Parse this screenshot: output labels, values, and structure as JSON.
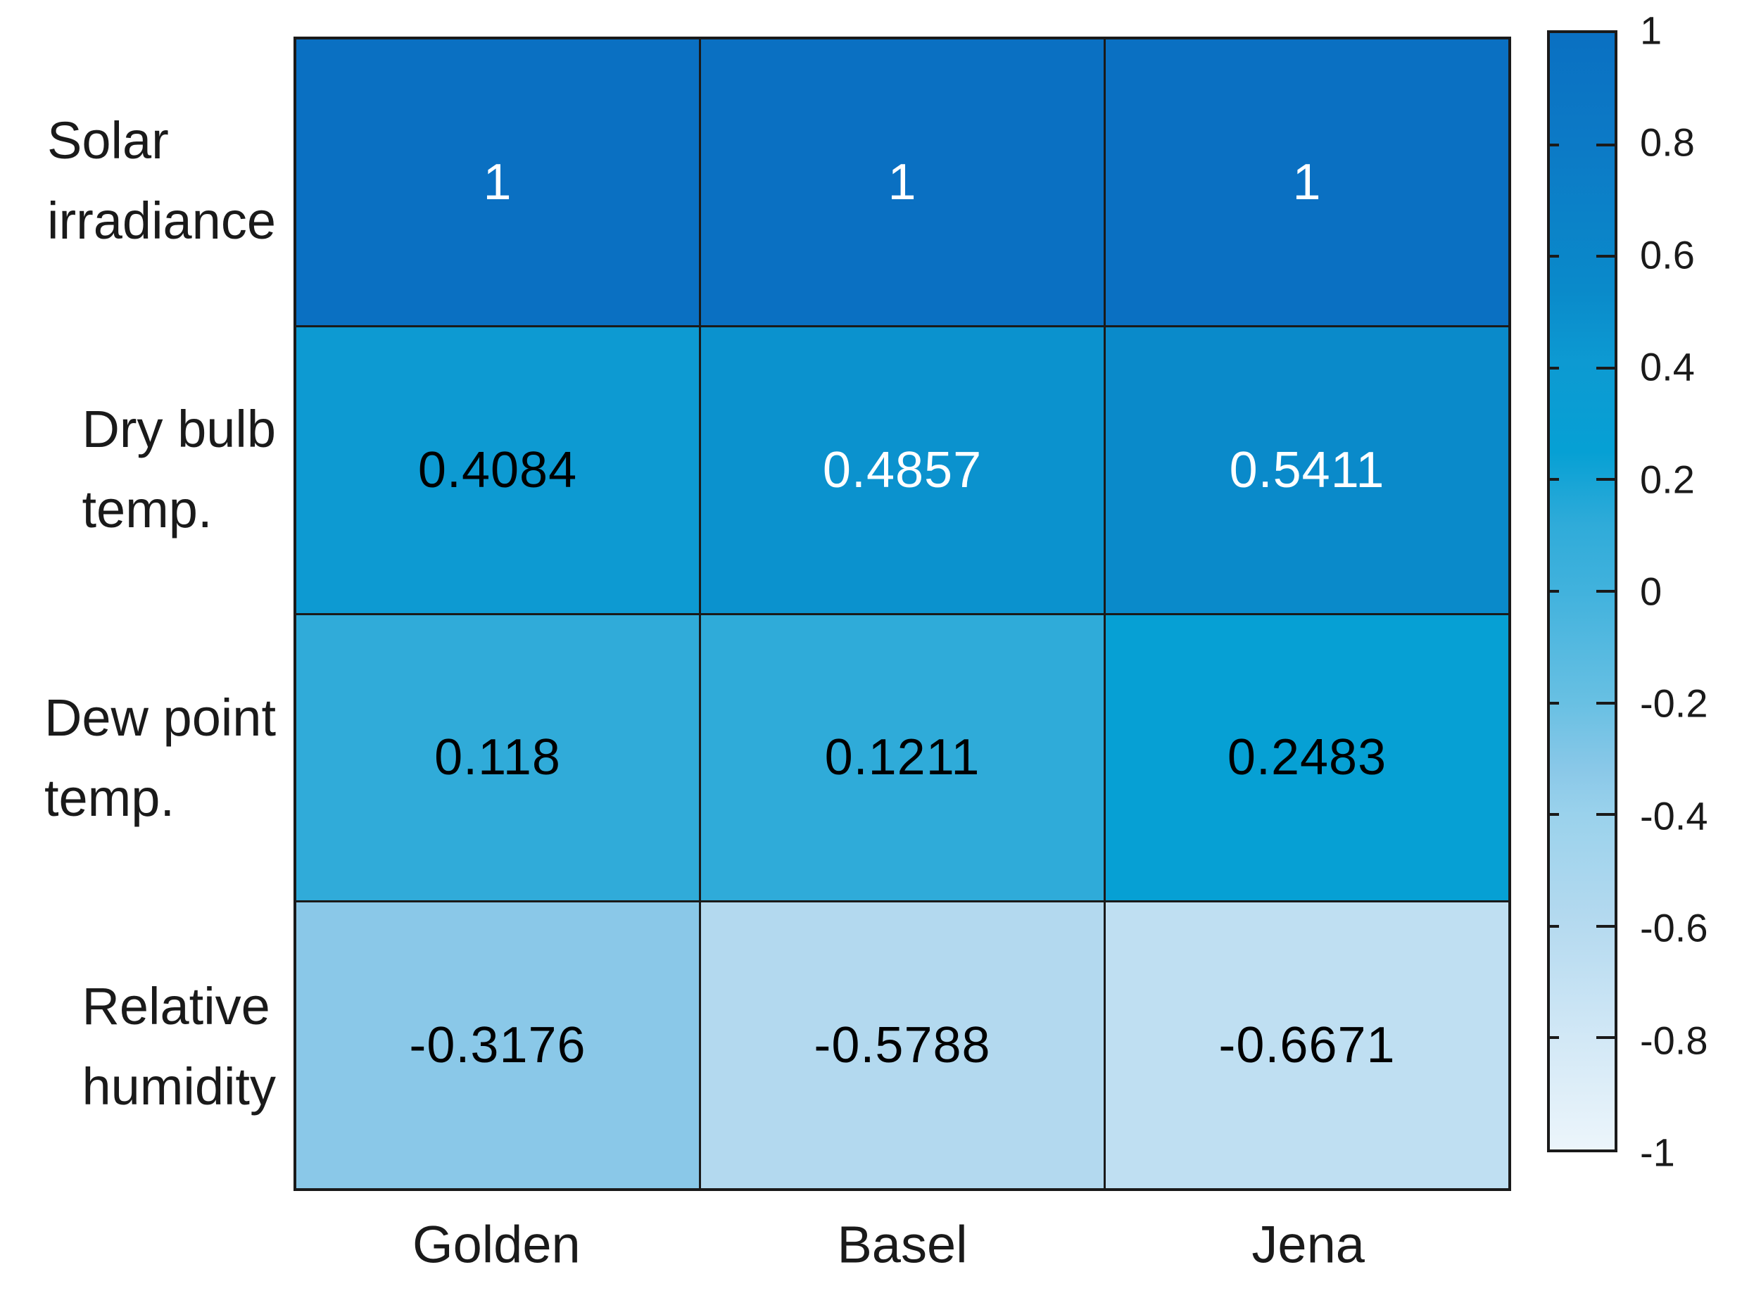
{
  "figure": {
    "background_color": "#ffffff",
    "grid_line_color": "#1a1a1a",
    "text_color": "#1a1a1a"
  },
  "chart_data": {
    "type": "heatmap",
    "title": "",
    "xlabel": "",
    "ylabel": "",
    "columns": [
      "Golden",
      "Basel",
      "Jena"
    ],
    "rows": [
      "Solar\nirradiance",
      "Dry bulb\ntemp.",
      "Dew point\ntemp.",
      "Relative\nhumidity"
    ],
    "values": [
      [
        1,
        1,
        1
      ],
      [
        0.4084,
        0.4857,
        0.5411
      ],
      [
        0.118,
        0.1211,
        0.2483
      ],
      [
        -0.3176,
        -0.5788,
        -0.6671
      ]
    ],
    "display": [
      [
        "1",
        "1",
        "1"
      ],
      [
        "0.4084",
        "0.4857",
        "0.5411"
      ],
      [
        "0.118",
        "0.1211",
        "0.2483"
      ],
      [
        "-0.3176",
        "-0.5788",
        "-0.6671"
      ]
    ],
    "cell_colors": [
      [
        "#0a70c2",
        "#0a70c2",
        "#0a70c2"
      ],
      [
        "#0d9ad2",
        "#0b92ce",
        "#0a8aca"
      ],
      [
        "#30abd9",
        "#2fabd9",
        "#06a0d4"
      ],
      [
        "#8ac8e8",
        "#b3d9ef",
        "#bfdff2"
      ]
    ],
    "cell_text_colors": [
      [
        "#ffffff",
        "#ffffff",
        "#ffffff"
      ],
      [
        "#000000",
        "#ffffff",
        "#ffffff"
      ],
      [
        "#000000",
        "#000000",
        "#000000"
      ],
      [
        "#000000",
        "#000000",
        "#000000"
      ]
    ],
    "colorbar": {
      "min": -1,
      "max": 1,
      "tick_values": [
        1,
        0.8,
        0.6,
        0.4,
        0.2,
        0,
        -0.2,
        -0.4,
        -0.6,
        -0.8,
        -1
      ],
      "tick_labels": [
        "1",
        "0.8",
        "0.6",
        "0.4",
        "0.2",
        "0",
        "-0.2",
        "-0.4",
        "-0.6",
        "-0.8",
        "-1"
      ],
      "gradient_stops": [
        {
          "value": 1.0,
          "color": "#0a70c2"
        },
        {
          "value": 0.8,
          "color": "#0c7ac6"
        },
        {
          "value": 0.54,
          "color": "#0a8aca"
        },
        {
          "value": 0.41,
          "color": "#0d9ad2"
        },
        {
          "value": 0.25,
          "color": "#06a0d4"
        },
        {
          "value": 0.12,
          "color": "#2fabd9"
        },
        {
          "value": 0.0,
          "color": "#41b2dd"
        },
        {
          "value": -0.2,
          "color": "#68c0e3"
        },
        {
          "value": -0.32,
          "color": "#8ac8e8"
        },
        {
          "value": -0.4,
          "color": "#9ad2ec"
        },
        {
          "value": -0.58,
          "color": "#b3d9ef"
        },
        {
          "value": -0.67,
          "color": "#bfdff2"
        },
        {
          "value": -0.8,
          "color": "#d2e8f6"
        },
        {
          "value": -1.0,
          "color": "#ecf5fb"
        }
      ]
    }
  }
}
